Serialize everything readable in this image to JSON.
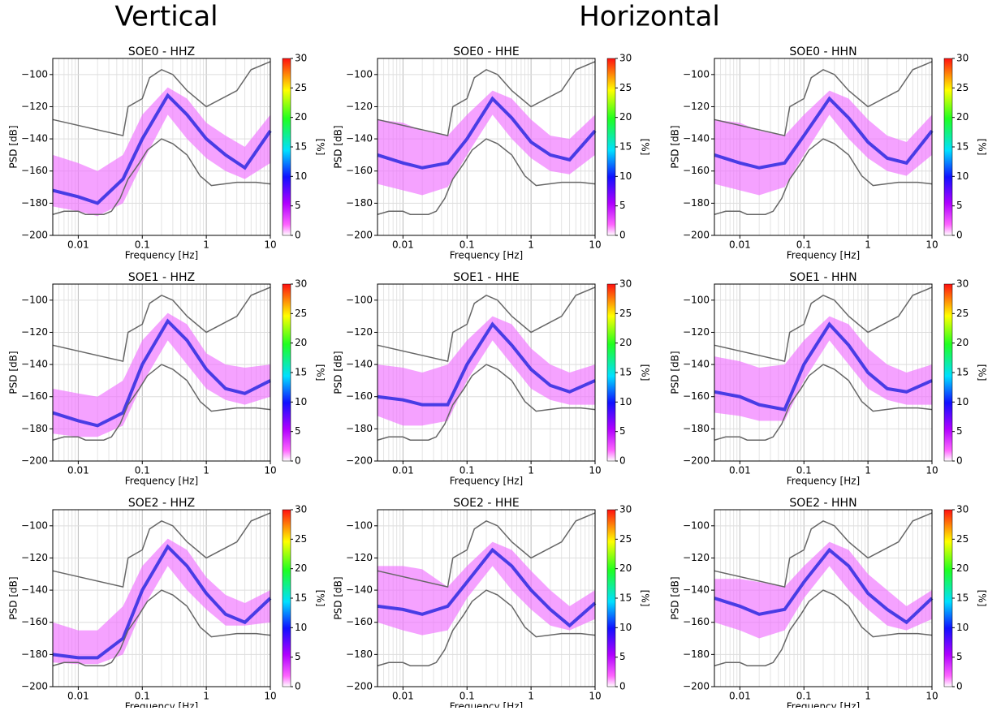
{
  "headings": {
    "vertical": "Vertical",
    "horizontal": "Horizontal"
  },
  "reference": {
    "nhnm_x": [
      0.004,
      0.05,
      0.06,
      0.1,
      0.13,
      0.2,
      0.3,
      0.5,
      1,
      3,
      5,
      10
    ],
    "nhnm": [
      -128,
      -138,
      -120,
      -115,
      -102,
      -97,
      -100,
      -110,
      -120,
      -110,
      -97,
      -92
    ],
    "nlnm_x": [
      0.004,
      0.006,
      0.01,
      0.013,
      0.025,
      0.033,
      0.045,
      0.06,
      0.09,
      0.12,
      0.2,
      0.3,
      0.5,
      0.8,
      1.2,
      3,
      6,
      10
    ],
    "nlnm": [
      -187,
      -185,
      -185,
      -187,
      -187,
      -185,
      -177,
      -165,
      -155,
      -147,
      -140,
      -143,
      -150,
      -163,
      -169,
      -167,
      -167,
      -168
    ]
  },
  "chart_data": [
    {
      "type": "ppsd",
      "title": "SOE0 - HHZ",
      "xlabel": "Frequency [Hz]",
      "ylabel": "PSD [dB]",
      "colorbar_label": "[%]",
      "xlim": [
        0.004,
        10
      ],
      "ylim": [
        -200,
        -90
      ],
      "xticks": [
        0.01,
        0.1,
        1,
        10
      ],
      "yticks": [
        {
          "value": -200,
          "label": "−200"
        },
        {
          "value": -180,
          "label": "−180"
        },
        {
          "value": -160,
          "label": "−160"
        },
        {
          "value": -140,
          "label": "−140"
        },
        {
          "value": -120,
          "label": "−120"
        },
        {
          "value": -100,
          "label": "−100"
        }
      ],
      "clim": [
        0,
        30
      ],
      "cticks": [
        0,
        5,
        10,
        15,
        20,
        25,
        30
      ],
      "x": [
        0.004,
        0.01,
        0.02,
        0.05,
        0.1,
        0.25,
        0.5,
        1,
        2,
        4,
        10
      ],
      "upper": [
        -150,
        -155,
        -160,
        -150,
        -125,
        -108,
        -115,
        -130,
        -138,
        -145,
        -125
      ],
      "mode": [
        -172,
        -176,
        -180,
        -165,
        -140,
        -113,
        -125,
        -140,
        -150,
        -158,
        -135
      ],
      "lower": [
        -182,
        -185,
        -188,
        -180,
        -155,
        -125,
        -140,
        -152,
        -160,
        -165,
        -155
      ]
    },
    {
      "type": "ppsd",
      "title": "SOE0 - HHE",
      "xlabel": "Frequency [Hz]",
      "ylabel": "PSD [dB]",
      "colorbar_label": "[%]",
      "xlim": [
        0.004,
        10
      ],
      "ylim": [
        -200,
        -90
      ],
      "xticks": [
        0.01,
        0.1,
        1,
        10
      ],
      "yticks": [
        {
          "value": -200,
          "label": "−200"
        },
        {
          "value": -180,
          "label": "−180"
        },
        {
          "value": -160,
          "label": "−160"
        },
        {
          "value": -140,
          "label": "−140"
        },
        {
          "value": -120,
          "label": "−120"
        },
        {
          "value": -100,
          "label": "−100"
        }
      ],
      "clim": [
        0,
        30
      ],
      "cticks": [
        0,
        5,
        10,
        15,
        20,
        25,
        30
      ],
      "x": [
        0.004,
        0.01,
        0.02,
        0.05,
        0.1,
        0.25,
        0.5,
        1,
        2,
        4,
        10
      ],
      "upper": [
        -128,
        -130,
        -135,
        -138,
        -125,
        -110,
        -115,
        -128,
        -138,
        -140,
        -125
      ],
      "mode": [
        -150,
        -155,
        -158,
        -155,
        -140,
        -115,
        -127,
        -142,
        -150,
        -153,
        -135
      ],
      "lower": [
        -168,
        -172,
        -175,
        -170,
        -150,
        -125,
        -140,
        -152,
        -160,
        -162,
        -150
      ]
    },
    {
      "type": "ppsd",
      "title": "SOE0 - HHN",
      "xlabel": "Frequency [Hz]",
      "ylabel": "PSD [dB]",
      "colorbar_label": "[%]",
      "xlim": [
        0.004,
        10
      ],
      "ylim": [
        -200,
        -90
      ],
      "xticks": [
        0.01,
        0.1,
        1,
        10
      ],
      "yticks": [
        {
          "value": -200,
          "label": "−200"
        },
        {
          "value": -180,
          "label": "−180"
        },
        {
          "value": -160,
          "label": "−160"
        },
        {
          "value": -140,
          "label": "−140"
        },
        {
          "value": -120,
          "label": "−120"
        },
        {
          "value": -100,
          "label": "−100"
        }
      ],
      "clim": [
        0,
        30
      ],
      "cticks": [
        0,
        5,
        10,
        15,
        20,
        25,
        30
      ],
      "x": [
        0.004,
        0.01,
        0.02,
        0.05,
        0.1,
        0.25,
        0.5,
        1,
        2,
        4,
        10
      ],
      "upper": [
        -128,
        -130,
        -135,
        -138,
        -125,
        -110,
        -115,
        -128,
        -138,
        -142,
        -125
      ],
      "mode": [
        -150,
        -155,
        -158,
        -155,
        -138,
        -115,
        -127,
        -142,
        -152,
        -155,
        -135
      ],
      "lower": [
        -168,
        -172,
        -175,
        -170,
        -150,
        -125,
        -140,
        -152,
        -160,
        -163,
        -150
      ]
    },
    {
      "type": "ppsd",
      "title": "SOE1 - HHZ",
      "xlabel": "Frequency [Hz]",
      "ylabel": "PSD [dB]",
      "colorbar_label": "[%]",
      "xlim": [
        0.004,
        10
      ],
      "ylim": [
        -200,
        -90
      ],
      "xticks": [
        0.01,
        0.1,
        1,
        10
      ],
      "yticks": [
        {
          "value": -200,
          "label": "−200"
        },
        {
          "value": -180,
          "label": "−180"
        },
        {
          "value": -160,
          "label": "−160"
        },
        {
          "value": -140,
          "label": "−140"
        },
        {
          "value": -120,
          "label": "−120"
        },
        {
          "value": -100,
          "label": "−100"
        }
      ],
      "clim": [
        0,
        30
      ],
      "cticks": [
        0,
        5,
        10,
        15,
        20,
        25,
        30
      ],
      "x": [
        0.004,
        0.01,
        0.02,
        0.05,
        0.1,
        0.25,
        0.5,
        1,
        2,
        4,
        10
      ],
      "upper": [
        -155,
        -158,
        -160,
        -150,
        -125,
        -108,
        -115,
        -133,
        -140,
        -142,
        -140
      ],
      "mode": [
        -170,
        -175,
        -178,
        -170,
        -140,
        -113,
        -125,
        -143,
        -155,
        -158,
        -150
      ],
      "lower": [
        -183,
        -185,
        -185,
        -178,
        -152,
        -125,
        -140,
        -155,
        -162,
        -165,
        -160
      ]
    },
    {
      "type": "ppsd",
      "title": "SOE1 - HHE",
      "xlabel": "Frequency [Hz]",
      "ylabel": "PSD [dB]",
      "colorbar_label": "[%]",
      "xlim": [
        0.004,
        10
      ],
      "ylim": [
        -200,
        -90
      ],
      "xticks": [
        0.01,
        0.1,
        1,
        10
      ],
      "yticks": [
        {
          "value": -200,
          "label": "−200"
        },
        {
          "value": -180,
          "label": "−180"
        },
        {
          "value": -160,
          "label": "−160"
        },
        {
          "value": -140,
          "label": "−140"
        },
        {
          "value": -120,
          "label": "−120"
        },
        {
          "value": -100,
          "label": "−100"
        }
      ],
      "clim": [
        0,
        30
      ],
      "cticks": [
        0,
        5,
        10,
        15,
        20,
        25,
        30
      ],
      "x": [
        0.004,
        0.01,
        0.02,
        0.05,
        0.1,
        0.25,
        0.5,
        1,
        2,
        4,
        10
      ],
      "upper": [
        -140,
        -142,
        -145,
        -140,
        -125,
        -110,
        -115,
        -130,
        -140,
        -145,
        -140
      ],
      "mode": [
        -160,
        -162,
        -165,
        -165,
        -140,
        -115,
        -128,
        -143,
        -153,
        -157,
        -150
      ],
      "lower": [
        -172,
        -178,
        -178,
        -175,
        -150,
        -125,
        -140,
        -155,
        -162,
        -165,
        -165
      ]
    },
    {
      "type": "ppsd",
      "title": "SOE1 - HHN",
      "xlabel": "Frequency [Hz]",
      "ylabel": "PSD [dB]",
      "colorbar_label": "[%]",
      "xlim": [
        0.004,
        10
      ],
      "ylim": [
        -200,
        -90
      ],
      "xticks": [
        0.01,
        0.1,
        1,
        10
      ],
      "yticks": [
        {
          "value": -200,
          "label": "−200"
        },
        {
          "value": -180,
          "label": "−180"
        },
        {
          "value": -160,
          "label": "−160"
        },
        {
          "value": -140,
          "label": "−140"
        },
        {
          "value": -120,
          "label": "−120"
        },
        {
          "value": -100,
          "label": "−100"
        }
      ],
      "clim": [
        0,
        30
      ],
      "cticks": [
        0,
        5,
        10,
        15,
        20,
        25,
        30
      ],
      "x": [
        0.004,
        0.01,
        0.02,
        0.05,
        0.1,
        0.25,
        0.5,
        1,
        2,
        4,
        10
      ],
      "upper": [
        -135,
        -138,
        -142,
        -140,
        -125,
        -110,
        -115,
        -130,
        -140,
        -145,
        -140
      ],
      "mode": [
        -157,
        -160,
        -165,
        -168,
        -140,
        -115,
        -128,
        -145,
        -155,
        -157,
        -150
      ],
      "lower": [
        -170,
        -172,
        -175,
        -175,
        -150,
        -125,
        -140,
        -155,
        -162,
        -165,
        -165
      ]
    },
    {
      "type": "ppsd",
      "title": "SOE2 - HHZ",
      "xlabel": "Frequency [Hz]",
      "ylabel": "PSD [dB]",
      "colorbar_label": "[%]",
      "xlim": [
        0.004,
        10
      ],
      "ylim": [
        -200,
        -90
      ],
      "xticks": [
        0.01,
        0.1,
        1,
        10
      ],
      "yticks": [
        {
          "value": -200,
          "label": "−200"
        },
        {
          "value": -180,
          "label": "−180"
        },
        {
          "value": -160,
          "label": "−160"
        },
        {
          "value": -140,
          "label": "−140"
        },
        {
          "value": -120,
          "label": "−120"
        },
        {
          "value": -100,
          "label": "−100"
        }
      ],
      "clim": [
        0,
        30
      ],
      "cticks": [
        0,
        5,
        10,
        15,
        20,
        25,
        30
      ],
      "x": [
        0.004,
        0.01,
        0.02,
        0.05,
        0.1,
        0.25,
        0.5,
        1,
        2,
        4,
        10
      ],
      "upper": [
        -160,
        -165,
        -165,
        -150,
        -125,
        -108,
        -115,
        -132,
        -143,
        -148,
        -140
      ],
      "mode": [
        -180,
        -182,
        -182,
        -170,
        -140,
        -113,
        -125,
        -142,
        -155,
        -160,
        -145
      ],
      "lower": [
        -185,
        -186,
        -186,
        -180,
        -152,
        -125,
        -140,
        -152,
        -162,
        -162,
        -160
      ]
    },
    {
      "type": "ppsd",
      "title": "SOE2 - HHE",
      "xlabel": "Frequency [Hz]",
      "ylabel": "PSD [dB]",
      "colorbar_label": "[%]",
      "xlim": [
        0.004,
        10
      ],
      "ylim": [
        -200,
        -90
      ],
      "xticks": [
        0.01,
        0.1,
        1,
        10
      ],
      "yticks": [
        {
          "value": -200,
          "label": "−200"
        },
        {
          "value": -180,
          "label": "−180"
        },
        {
          "value": -160,
          "label": "−160"
        },
        {
          "value": -140,
          "label": "−140"
        },
        {
          "value": -120,
          "label": "−120"
        },
        {
          "value": -100,
          "label": "−100"
        }
      ],
      "clim": [
        0,
        30
      ],
      "cticks": [
        0,
        5,
        10,
        15,
        20,
        25,
        30
      ],
      "x": [
        0.004,
        0.01,
        0.02,
        0.05,
        0.1,
        0.25,
        0.5,
        1,
        2,
        4,
        10
      ],
      "upper": [
        -125,
        -125,
        -127,
        -138,
        -125,
        -110,
        -115,
        -128,
        -140,
        -150,
        -140
      ],
      "mode": [
        -150,
        -152,
        -155,
        -150,
        -135,
        -115,
        -125,
        -140,
        -152,
        -162,
        -148
      ],
      "lower": [
        -160,
        -165,
        -168,
        -165,
        -145,
        -125,
        -140,
        -152,
        -162,
        -165,
        -158
      ]
    },
    {
      "type": "ppsd",
      "title": "SOE2 - HHN",
      "xlabel": "Frequency [Hz]",
      "ylabel": "PSD [dB]",
      "colorbar_label": "[%]",
      "xlim": [
        0.004,
        10
      ],
      "ylim": [
        -200,
        -90
      ],
      "xticks": [
        0.01,
        0.1,
        1,
        10
      ],
      "yticks": [
        {
          "value": -200,
          "label": "−200"
        },
        {
          "value": -180,
          "label": "−180"
        },
        {
          "value": -160,
          "label": "−160"
        },
        {
          "value": -140,
          "label": "−140"
        },
        {
          "value": -120,
          "label": "−120"
        },
        {
          "value": -100,
          "label": "−100"
        }
      ],
      "clim": [
        0,
        30
      ],
      "cticks": [
        0,
        5,
        10,
        15,
        20,
        25,
        30
      ],
      "x": [
        0.004,
        0.01,
        0.02,
        0.05,
        0.1,
        0.25,
        0.5,
        1,
        2,
        4,
        10
      ],
      "upper": [
        -133,
        -133,
        -135,
        -138,
        -125,
        -110,
        -115,
        -130,
        -140,
        -150,
        -140
      ],
      "mode": [
        -145,
        -150,
        -155,
        -152,
        -135,
        -115,
        -125,
        -142,
        -152,
        -160,
        -145
      ],
      "lower": [
        -160,
        -165,
        -170,
        -165,
        -145,
        -125,
        -140,
        -152,
        -162,
        -165,
        -158
      ]
    }
  ]
}
